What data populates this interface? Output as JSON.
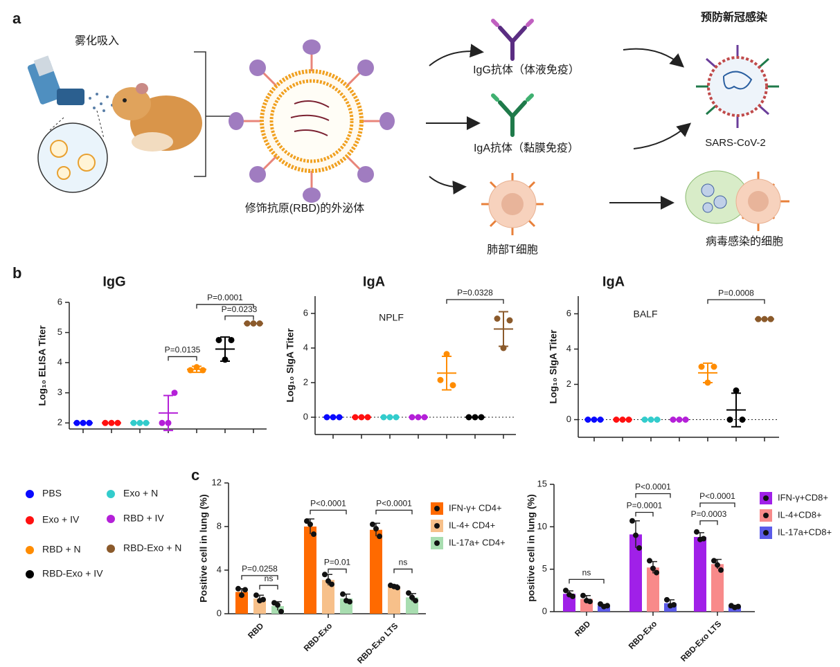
{
  "panel_labels": [
    "a",
    "b",
    "c"
  ],
  "diagram": {
    "inhalation": "雾化吸入",
    "exosome": "修饰抗原(RBD)的外泌体",
    "igg": "IgG抗体（体液免疫）",
    "iga": "IgA抗体（黏膜免疫）",
    "t_cell": "肺部T细胞",
    "prevent": "预防新冠感染",
    "virus": "SARS-CoV-2",
    "infected": "病毒感染的细胞"
  },
  "legend": [
    {
      "name": "PBS",
      "color": "#0a0aff"
    },
    {
      "name": "Exo + IV",
      "color": "#ff1010"
    },
    {
      "name": "Exo + N",
      "color": "#33cccc"
    },
    {
      "name": "RBD + IV",
      "color": "#b420d8"
    },
    {
      "name": "RBD + N",
      "color": "#ff8c00"
    },
    {
      "name": "RBD-Exo + IV",
      "color": "#000000"
    },
    {
      "name": "RBD-Exo + N",
      "color": "#8b5a2b"
    }
  ],
  "chart_data": [
    {
      "type": "dot",
      "title": "IgG",
      "y_label": "Log₁₀ ELISA Titer",
      "ylim": [
        1.8,
        6
      ],
      "yticks": [
        2,
        3,
        4,
        5,
        6
      ],
      "zero_line": false,
      "series": [
        {
          "values": [
            2,
            2,
            2
          ],
          "mean": 2,
          "sd": 0
        },
        {
          "values": [
            2,
            2,
            2
          ],
          "mean": 2,
          "sd": 0
        },
        {
          "values": [
            2,
            2,
            2
          ],
          "mean": 2,
          "sd": 0
        },
        {
          "values": [
            2,
            2,
            3
          ],
          "mean": 2.33,
          "sd": 0.58
        },
        {
          "values": [
            3.75,
            3.85,
            3.75
          ],
          "mean": 3.78,
          "sd": 0.1
        },
        {
          "values": [
            4.75,
            4.1,
            4.75
          ],
          "mean": 4.45,
          "sd": 0.4
        },
        {
          "values": [
            5.3,
            5.3,
            5.3
          ],
          "mean": 5.3,
          "sd": 0
        }
      ],
      "annotations": [
        {
          "text": "P=0.0135",
          "from": 3,
          "to": 4,
          "y": 4.2
        },
        {
          "text": "P=0.0233",
          "from": 5,
          "to": 6,
          "y": 5.55
        },
        {
          "text": "P=0.0001",
          "from": 4,
          "to": 6,
          "y": 5.93
        }
      ]
    },
    {
      "type": "dot",
      "title": "IgA",
      "subtitle": "NPLF",
      "y_label": "Log₁₀ SIgA Titer",
      "ylim": [
        -1,
        7
      ],
      "yticks": [
        0,
        2,
        4,
        6
      ],
      "zero_line": true,
      "series": [
        {
          "values": [
            0,
            0,
            0
          ],
          "mean": 0,
          "sd": 0
        },
        {
          "values": [
            0,
            0,
            0
          ],
          "mean": 0,
          "sd": 0
        },
        {
          "values": [
            0,
            0,
            0
          ],
          "mean": 0,
          "sd": 0
        },
        {
          "values": [
            0,
            0,
            0
          ],
          "mean": 0,
          "sd": 0
        },
        {
          "values": [
            2.15,
            3.65,
            1.85
          ],
          "mean": 2.55,
          "sd": 0.97
        },
        {
          "values": [
            0,
            0,
            0
          ],
          "mean": 0,
          "sd": 0
        },
        {
          "values": [
            5.7,
            4.0,
            5.6
          ],
          "mean": 5.1,
          "sd": 1.0
        }
      ],
      "annotations": [
        {
          "text": "P=0.0328",
          "from": 4,
          "to": 6,
          "y": 6.8
        }
      ]
    },
    {
      "type": "dot",
      "title": "IgA",
      "subtitle": "BALF",
      "y_label": "Log₁₀ SIgA Titer",
      "ylim": [
        -1,
        7
      ],
      "yticks": [
        0,
        2,
        4,
        6
      ],
      "zero_line": true,
      "series": [
        {
          "values": [
            0,
            0,
            0
          ],
          "mean": 0,
          "sd": 0
        },
        {
          "values": [
            0,
            0,
            0
          ],
          "mean": 0,
          "sd": 0
        },
        {
          "values": [
            0,
            0,
            0
          ],
          "mean": 0,
          "sd": 0
        },
        {
          "values": [
            0,
            0,
            0
          ],
          "mean": 0,
          "sd": 0
        },
        {
          "values": [
            3.0,
            2.1,
            3.0
          ],
          "mean": 2.65,
          "sd": 0.55
        },
        {
          "values": [
            0,
            1.65,
            0
          ],
          "mean": 0.55,
          "sd": 0.95
        },
        {
          "values": [
            5.7,
            5.7,
            5.7
          ],
          "mean": 5.7,
          "sd": 0
        }
      ],
      "annotations": [
        {
          "text": "P=0.0008",
          "from": 4,
          "to": 6,
          "y": 6.8
        }
      ]
    },
    {
      "type": "bar",
      "y_label": "Positive cell in lung (%)",
      "ylim": [
        0,
        12
      ],
      "yticks": [
        0,
        4,
        8,
        12
      ],
      "categories": [
        "RBD",
        "RBD-Exo",
        "RBD-Exo LTS"
      ],
      "series": [
        {
          "name": "IFN-γ+ CD4+",
          "color": "#ff6a00",
          "values": [
            2.0,
            8.0,
            7.7
          ],
          "sd": [
            0.3,
            0.7,
            0.6
          ],
          "points": [
            [
              2.3,
              1.7,
              2.2
            ],
            [
              8.5,
              8.2,
              7.3
            ],
            [
              8.2,
              7.8,
              7.1
            ]
          ]
        },
        {
          "name": "IL-4+ CD4+",
          "color": "#f7c08a",
          "values": [
            1.4,
            3.1,
            2.5
          ],
          "sd": [
            0.3,
            0.5,
            0.15
          ],
          "points": [
            [
              1.7,
              1.2,
              1.3
            ],
            [
              3.6,
              3.0,
              2.7
            ],
            [
              2.6,
              2.5,
              2.4
            ]
          ]
        },
        {
          "name": "IL-17a+ CD4+",
          "color": "#a8ddb0",
          "values": [
            0.7,
            1.4,
            1.5
          ],
          "sd": [
            0.4,
            0.4,
            0.35
          ],
          "points": [
            [
              1.0,
              0.8,
              0.2
            ],
            [
              1.8,
              1.2,
              1.1
            ],
            [
              1.9,
              1.5,
              1.2
            ]
          ]
        }
      ],
      "annotations": [
        {
          "text": "P=0.0258",
          "category": 0,
          "from": 0,
          "to": 2,
          "y": 3.5
        },
        {
          "text": "ns",
          "category": 0,
          "from": 1,
          "to": 2,
          "y": 2.6
        },
        {
          "text": "P<0.0001",
          "category": 1,
          "from": 0,
          "to": 2,
          "y": 9.5
        },
        {
          "text": "P=0.01",
          "category": 1,
          "from": 1,
          "to": 2,
          "y": 4.1
        },
        {
          "text": "P<0.0001",
          "category": 2,
          "from": 0,
          "to": 2,
          "y": 9.5
        },
        {
          "text": "ns",
          "category": 2,
          "from": 1,
          "to": 2,
          "y": 4.1
        }
      ]
    },
    {
      "type": "bar",
      "y_label": "positive cell in lung (%)",
      "ylim": [
        0,
        15
      ],
      "yticks": [
        0,
        5,
        10,
        15
      ],
      "categories": [
        "RBD",
        "RBD-Exo",
        "RBD-Exo LTS"
      ],
      "series": [
        {
          "name": "IFN-γ+CD8+",
          "color": "#a020e8",
          "values": [
            2.1,
            9.1,
            8.8
          ],
          "sd": [
            0.35,
            1.6,
            0.5
          ],
          "points": [
            [
              2.5,
              2.0,
              1.8
            ],
            [
              10.7,
              9.0,
              7.5
            ],
            [
              9.4,
              8.5,
              8.6
            ]
          ]
        },
        {
          "name": "IL-4+CD8+",
          "color": "#f88a8a",
          "values": [
            1.5,
            5.2,
            5.6
          ],
          "sd": [
            0.4,
            0.7,
            0.55
          ],
          "points": [
            [
              1.9,
              1.3,
              1.2
            ],
            [
              6.0,
              5.1,
              4.6
            ],
            [
              6.0,
              5.5,
              4.9
            ]
          ]
        },
        {
          "name": "IL-17a+CD8+",
          "color": "#5b5be8",
          "values": [
            0.7,
            1.0,
            0.6
          ],
          "sd": [
            0.15,
            0.4,
            0.1
          ],
          "points": [
            [
              0.9,
              0.6,
              0.7
            ],
            [
              1.4,
              0.7,
              0.8
            ],
            [
              0.7,
              0.5,
              0.6
            ]
          ]
        }
      ],
      "annotations": [
        {
          "text": "ns",
          "category": 0,
          "from": 0,
          "to": 2,
          "y": 3.8
        },
        {
          "text": "P<0.0001",
          "category": 1,
          "from": 0,
          "to": 2,
          "y": 13.9
        },
        {
          "text": "P=0.0001",
          "category": 1,
          "from": 0,
          "to": 1,
          "y": 11.7
        },
        {
          "text": "P<0.0001",
          "category": 2,
          "from": 0,
          "to": 2,
          "y": 12.8
        },
        {
          "text": "P=0.0003",
          "category": 2,
          "from": 0,
          "to": 1,
          "y": 10.7
        }
      ]
    }
  ]
}
